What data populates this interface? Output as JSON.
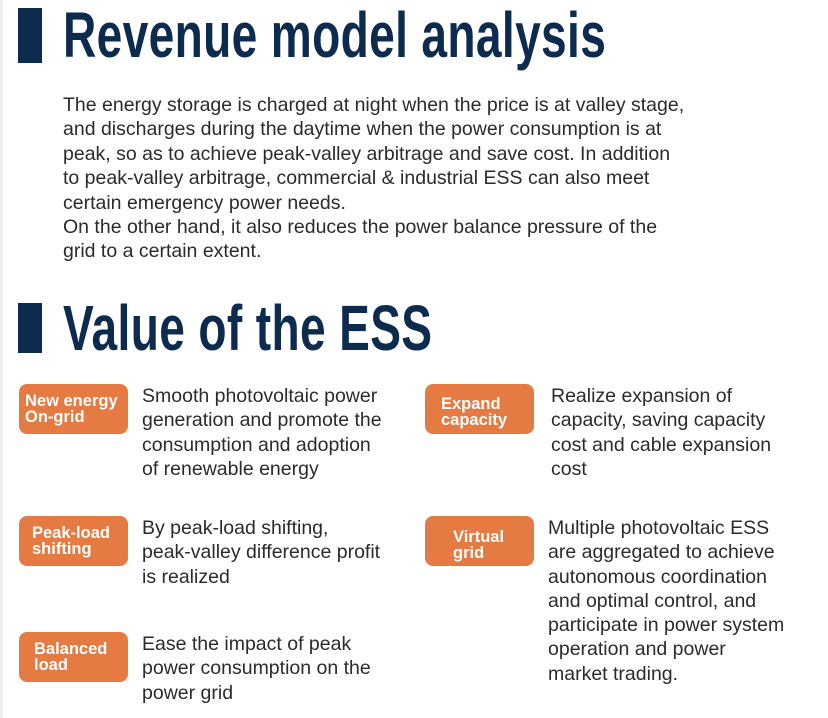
{
  "section1": {
    "title": "Revenue model analysis",
    "paragraph_lines": [
      "The energy storage is charged at night when the price is at valley stage,",
      "and discharges during the daytime when the power consumption is at",
      "peak, so as to achieve peak-valley arbitrage and save cost. In addition",
      "to peak-valley arbitrage, commercial & industrial ESS can also meet",
      "certain emergency power needs.",
      "On the other hand, it also reduces the power balance pressure of the",
      "grid to a certain extent."
    ]
  },
  "section2": {
    "title": "Value of the ESS",
    "items": [
      {
        "badge": [
          "New energy",
          "On-grid"
        ],
        "desc": [
          "Smooth photovoltaic power",
          "generation and promote the",
          "consumption and adoption",
          "of renewable energy"
        ]
      },
      {
        "badge": [
          "Expand",
          "capacity"
        ],
        "desc": [
          "Realize expansion of",
          "capacity, saving capacity",
          "cost and cable expansion",
          "cost"
        ]
      },
      {
        "badge": [
          "Peak-load",
          "shifting"
        ],
        "desc": [
          "By peak-load shifting,",
          "peak-valley difference profit",
          "is realized"
        ]
      },
      {
        "badge": [
          "Virtual",
          "grid"
        ],
        "desc": [
          "Multiple photovoltaic ESS",
          "are aggregated to achieve",
          "autonomous coordination",
          "and optimal control, and",
          "participate in power system",
          "operation and power",
          "market trading."
        ]
      },
      {
        "badge": [
          "Balanced",
          "load"
        ],
        "desc": [
          "Ease the impact of peak",
          "power consumption on the",
          "power grid"
        ]
      }
    ]
  },
  "colors": {
    "heading": "#0d2a4f",
    "badge": "#e57a42",
    "text": "#2b2b2b"
  }
}
